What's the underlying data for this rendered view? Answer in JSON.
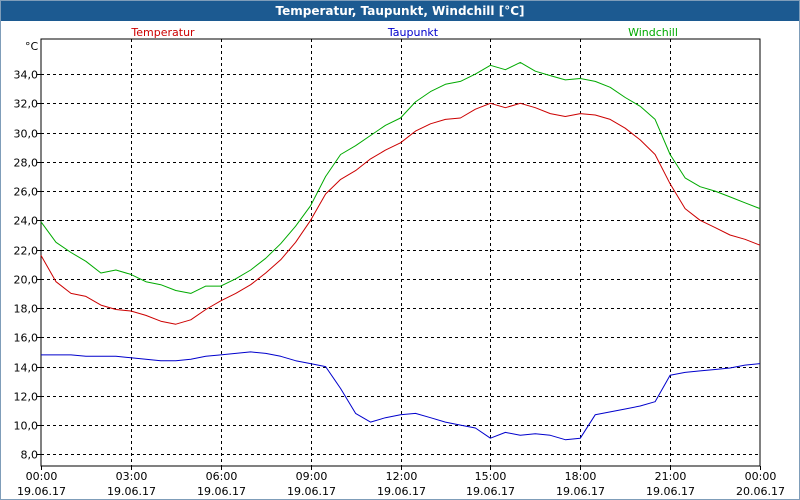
{
  "window": {
    "title": "Temperatur, Taupunkt, Windchill [°C]"
  },
  "chart_data": {
    "type": "line",
    "title": "Temperatur, Taupunkt, Windchill [°C]",
    "ylabel": "°C",
    "xlabel": "",
    "ylim": [
      7.2,
      36.4
    ],
    "xlim": [
      0,
      24
    ],
    "grid": true,
    "legend_position": "top",
    "y_ticks": [
      "8,0",
      "10,0",
      "12,0",
      "14,0",
      "16,0",
      "18,0",
      "20,0",
      "22,0",
      "24,0",
      "26,0",
      "28,0",
      "30,0",
      "32,0",
      "34,0"
    ],
    "y_tick_values": [
      8,
      10,
      12,
      14,
      16,
      18,
      20,
      22,
      24,
      26,
      28,
      30,
      32,
      34
    ],
    "x_tick_values": [
      0,
      3,
      6,
      9,
      12,
      15,
      18,
      21,
      24
    ],
    "x_tick_times": [
      "00:00",
      "03:00",
      "06:00",
      "09:00",
      "12:00",
      "15:00",
      "18:00",
      "21:00",
      "00:00"
    ],
    "x_tick_dates": [
      "19.06.17",
      "19.06.17",
      "19.06.17",
      "19.06.17",
      "19.06.17",
      "19.06.17",
      "19.06.17",
      "19.06.17",
      "20.06.17"
    ],
    "x": [
      0,
      0.5,
      1,
      1.5,
      2,
      2.5,
      3,
      3.5,
      4,
      4.5,
      5,
      5.5,
      6,
      6.5,
      7,
      7.5,
      8,
      8.5,
      9,
      9.5,
      10,
      10.5,
      11,
      11.5,
      12,
      12.5,
      13,
      13.5,
      14,
      14.5,
      15,
      15.5,
      16,
      16.5,
      17,
      17.5,
      18,
      18.5,
      19,
      19.5,
      20,
      20.5,
      21,
      21.5,
      22,
      22.5,
      23,
      23.5,
      24
    ],
    "series": [
      {
        "name": "Temperatur",
        "color": "#cc0000",
        "values": [
          21.6,
          19.8,
          19.0,
          18.8,
          18.2,
          17.9,
          17.8,
          17.5,
          17.1,
          16.9,
          17.2,
          17.9,
          18.5,
          19.0,
          19.6,
          20.4,
          21.3,
          22.5,
          24.0,
          25.8,
          26.8,
          27.4,
          28.2,
          28.8,
          29.3,
          30.1,
          30.6,
          30.9,
          31.0,
          31.6,
          32.0,
          31.7,
          32.0,
          31.7,
          31.3,
          31.1,
          31.3,
          31.2,
          30.9,
          30.3,
          29.5,
          28.5,
          26.5,
          24.8,
          24.0,
          23.5,
          23.0,
          22.7,
          22.3
        ]
      },
      {
        "name": "Taupunkt",
        "color": "#0000cc",
        "values": [
          14.8,
          14.8,
          14.8,
          14.7,
          14.7,
          14.7,
          14.6,
          14.5,
          14.4,
          14.4,
          14.5,
          14.7,
          14.8,
          14.9,
          15.0,
          14.9,
          14.7,
          14.4,
          14.2,
          14.0,
          12.5,
          10.8,
          10.2,
          10.5,
          10.7,
          10.8,
          10.5,
          10.2,
          10.0,
          9.8,
          9.1,
          9.5,
          9.3,
          9.4,
          9.3,
          9.0,
          9.1,
          10.7,
          10.9,
          11.1,
          11.3,
          11.6,
          13.4,
          13.6,
          13.7,
          13.8,
          13.9,
          14.1,
          14.2
        ]
      },
      {
        "name": "Windchill",
        "color": "#00aa00",
        "values": [
          23.9,
          22.5,
          21.8,
          21.2,
          20.4,
          20.6,
          20.3,
          19.8,
          19.6,
          19.2,
          19.0,
          19.5,
          19.5,
          20.0,
          20.6,
          21.4,
          22.4,
          23.6,
          25.0,
          27.0,
          28.5,
          29.1,
          29.8,
          30.5,
          31.0,
          32.1,
          32.8,
          33.3,
          33.5,
          34.0,
          34.6,
          34.3,
          34.8,
          34.2,
          33.9,
          33.6,
          33.7,
          33.5,
          33.1,
          32.4,
          31.8,
          30.9,
          28.5,
          26.9,
          26.3,
          26.0,
          25.6,
          25.2,
          24.8
        ]
      }
    ]
  }
}
